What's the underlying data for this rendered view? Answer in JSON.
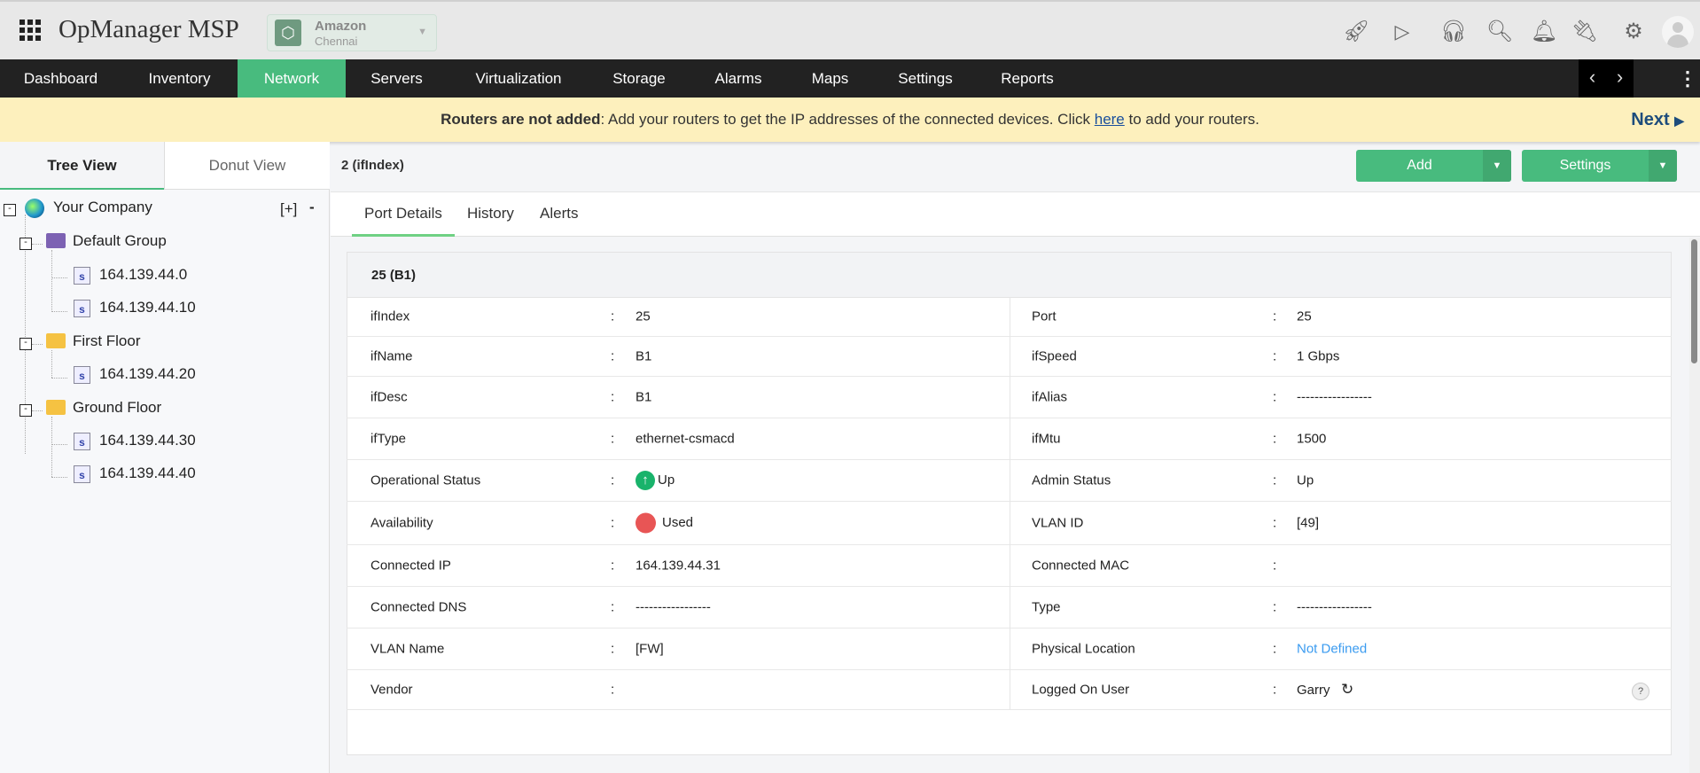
{
  "header": {
    "app_title": "OpManager MSP",
    "customer": {
      "name": "Amazon",
      "site": "Chennai"
    },
    "icons": [
      "rocket-icon",
      "presentation-icon",
      "headset-icon",
      "search-icon",
      "bell-icon",
      "plug-icon",
      "gear-icon",
      "user-avatar-icon"
    ]
  },
  "nav": {
    "items": [
      "Dashboard",
      "Inventory",
      "Network",
      "Servers",
      "Virtualization",
      "Storage",
      "Alarms",
      "Maps",
      "Settings",
      "Reports"
    ],
    "active": "Network"
  },
  "banner": {
    "bold": "Routers are not added",
    "text1": ": Add your routers to get the IP addresses of the connected devices. Click ",
    "link": "here",
    "text2": " to add your routers.",
    "next": "Next"
  },
  "left": {
    "tabs": [
      "Tree View",
      "Donut View"
    ],
    "active": "Tree View",
    "tree": {
      "root": "Your Company",
      "expand": "[+]",
      "collapse": "-",
      "groups": [
        {
          "name": "Default Group",
          "color": "#7d62b3",
          "items": [
            "164.139.44.0",
            "164.139.44.10"
          ]
        },
        {
          "name": "First Floor",
          "color": "#f5c242",
          "items": [
            "164.139.44.20"
          ]
        },
        {
          "name": "Ground Floor",
          "color": "#f5c242",
          "items": [
            "164.139.44.30",
            "164.139.44.40"
          ]
        }
      ]
    }
  },
  "toolbar": {
    "crumb": "2 (ifIndex)",
    "add": "Add",
    "settings": "Settings"
  },
  "tabs": [
    "Port Details",
    "History",
    "Alerts"
  ],
  "card": {
    "title": "25 (B1)",
    "rows": [
      {
        "l": "ifIndex",
        "v": "25",
        "l2": "Port",
        "v2": "25"
      },
      {
        "l": "ifName",
        "v": "B1",
        "l2": "ifSpeed",
        "v2": "1 Gbps"
      },
      {
        "l": "ifDesc",
        "v": "B1",
        "l2": "ifAlias",
        "v2": "-----------------"
      },
      {
        "l": "ifType",
        "v": "ethernet-csmacd",
        "l2": "ifMtu",
        "v2": "1500"
      },
      {
        "l": "Operational Status",
        "v": "Up",
        "l2": "Admin Status",
        "v2": "Up"
      },
      {
        "l": "Availability",
        "v": "Used",
        "l2": "VLAN ID",
        "v2": "[49]"
      },
      {
        "l": "Connected IP",
        "v": "164.139.44.31",
        "l2": "Connected MAC",
        "v2": ""
      },
      {
        "l": "Connected DNS",
        "v": "-----------------",
        "l2": "Type",
        "v2": "-----------------"
      },
      {
        "l": "VLAN Name",
        "v": "[FW]",
        "l2": "Physical Location",
        "v2": "Not Defined"
      },
      {
        "l": "Vendor",
        "v": "",
        "l2": "Logged On User",
        "v2": "Garry"
      }
    ],
    "colors": {
      "up": "#19b36b",
      "used": "#e85555",
      "link": "#3a9bf0",
      "accent": "#48bb7e"
    },
    "help": "?"
  }
}
